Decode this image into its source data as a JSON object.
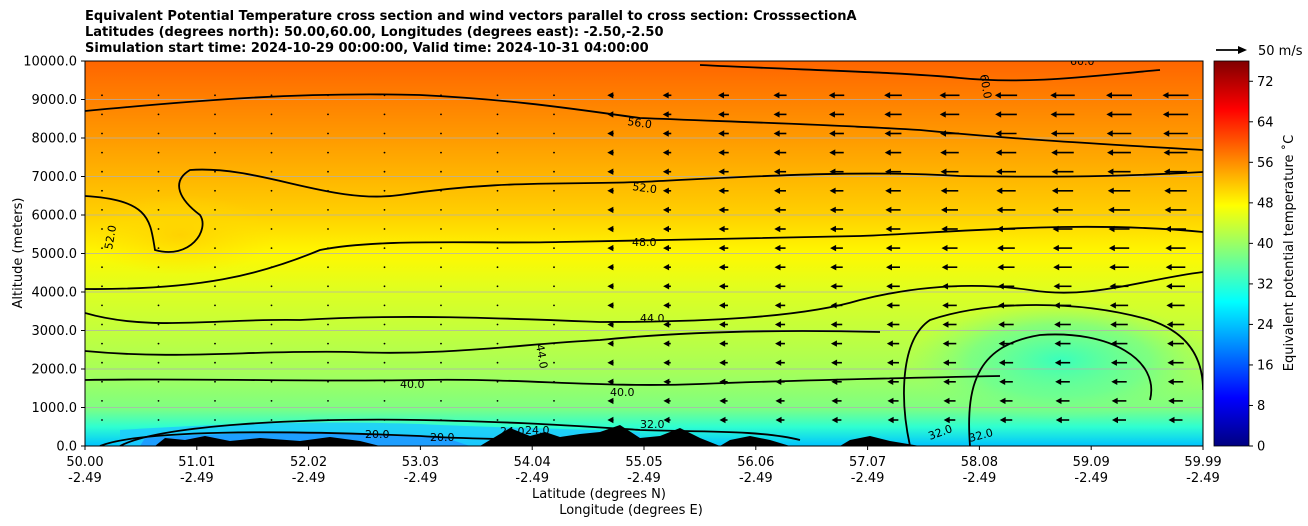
{
  "chart_data": {
    "type": "heatmap",
    "title_lines": [
      "Equivalent Potential Temperature cross section and wind vectors parallel to cross section: CrosssectionA",
      "Latitudes (degrees north): 50.00,60.00, Longitudes (degrees east): -2.50,-2.50",
      "Simulation start time: 2024-10-29 00:00:00, Valid time: 2024-10-31 04:00:00"
    ],
    "ylabel": "Altitude (meters)",
    "xlabel_lat": "Latitude (degrees N)",
    "xlabel_lon": "Longitude (degrees E)",
    "ylim": [
      0,
      10000
    ],
    "yticks": [
      "0.0",
      "1000.0",
      "2000.0",
      "3000.0",
      "4000.0",
      "5000.0",
      "6000.0",
      "7000.0",
      "8000.0",
      "9000.0",
      "10000.0"
    ],
    "xticks_lat": [
      "50.00",
      "51.01",
      "52.02",
      "53.03",
      "54.04",
      "55.05",
      "56.06",
      "57.07",
      "58.08",
      "59.09",
      "59.99"
    ],
    "xticks_lon": [
      "-2.49",
      "-2.49",
      "-2.49",
      "-2.49",
      "-2.49",
      "-2.49",
      "-2.49",
      "-2.49",
      "-2.49",
      "-2.49",
      "-2.49"
    ],
    "colorbar": {
      "label": "Equivalent potential temperature $^\\circ$C",
      "label_text": "Equivalent potential temperature ˚C",
      "range": [
        0,
        76
      ],
      "ticks": [
        "0",
        "8",
        "16",
        "24",
        "32",
        "40",
        "48",
        "56",
        "64",
        "72"
      ]
    },
    "quiver_key": "50 m/s",
    "contour_levels": [
      {
        "value": 20,
        "label": "20.0"
      },
      {
        "value": 24,
        "label": "24.0"
      },
      {
        "value": 32,
        "label": "32.0"
      },
      {
        "value": 40,
        "label": "40.0"
      },
      {
        "value": 44,
        "label": "44.0"
      },
      {
        "value": 48,
        "label": "48.0"
      },
      {
        "value": 52,
        "label": "52.0"
      },
      {
        "value": 56,
        "label": "56.0"
      },
      {
        "value": 60,
        "label": "60.0"
      }
    ],
    "approx_theta_e_profile": {
      "altitudes_m": [
        0,
        500,
        1000,
        2000,
        3000,
        4000,
        5000,
        6000,
        7000,
        8000,
        9000,
        10000
      ],
      "theta_e_C": [
        24,
        32,
        38,
        41,
        43,
        45,
        48,
        51,
        53,
        55,
        57,
        59
      ]
    },
    "wind_summary": "Vectors near zero south of ~54.5N; strong southward-pointing (leftward) vectors north of ~55N, strongest aloft (~25 m/s)"
  }
}
